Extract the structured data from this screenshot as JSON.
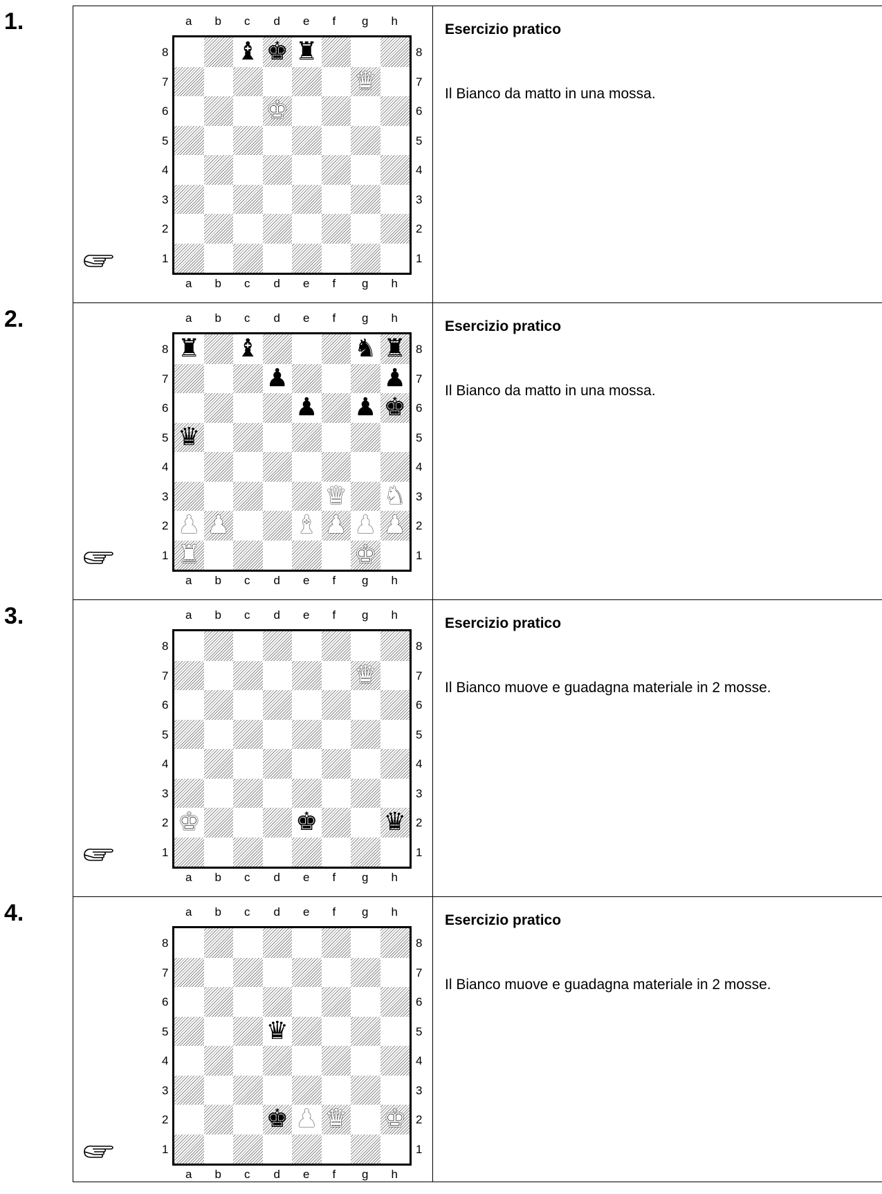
{
  "files": [
    "a",
    "b",
    "c",
    "d",
    "e",
    "f",
    "g",
    "h"
  ],
  "ranks": [
    "8",
    "7",
    "6",
    "5",
    "4",
    "3",
    "2",
    "1"
  ],
  "exercises": [
    {
      "number": "1.",
      "title": "Esercizio pratico",
      "description": "Il Bianco da matto in una mossa.",
      "pieces": [
        {
          "sq": "c8",
          "c": "b",
          "p": "bishop"
        },
        {
          "sq": "d8",
          "c": "b",
          "p": "king"
        },
        {
          "sq": "e8",
          "c": "b",
          "p": "rook"
        },
        {
          "sq": "g7",
          "c": "w",
          "p": "queen"
        },
        {
          "sq": "d6",
          "c": "w",
          "p": "king"
        }
      ]
    },
    {
      "number": "2.",
      "title": "Esercizio pratico",
      "description": "Il Bianco da matto in una mossa.",
      "pieces": [
        {
          "sq": "a8",
          "c": "b",
          "p": "rook"
        },
        {
          "sq": "c8",
          "c": "b",
          "p": "bishop"
        },
        {
          "sq": "g8",
          "c": "b",
          "p": "knight"
        },
        {
          "sq": "h8",
          "c": "b",
          "p": "rook"
        },
        {
          "sq": "d7",
          "c": "b",
          "p": "pawn"
        },
        {
          "sq": "h7",
          "c": "b",
          "p": "pawn"
        },
        {
          "sq": "e6",
          "c": "b",
          "p": "pawn"
        },
        {
          "sq": "g6",
          "c": "b",
          "p": "pawn"
        },
        {
          "sq": "h6",
          "c": "b",
          "p": "king"
        },
        {
          "sq": "a5",
          "c": "b",
          "p": "queen"
        },
        {
          "sq": "f3",
          "c": "w",
          "p": "queen"
        },
        {
          "sq": "h3",
          "c": "w",
          "p": "knight"
        },
        {
          "sq": "a2",
          "c": "w",
          "p": "pawn"
        },
        {
          "sq": "b2",
          "c": "w",
          "p": "pawn"
        },
        {
          "sq": "e2",
          "c": "w",
          "p": "bishop"
        },
        {
          "sq": "f2",
          "c": "w",
          "p": "pawn"
        },
        {
          "sq": "g2",
          "c": "w",
          "p": "pawn"
        },
        {
          "sq": "h2",
          "c": "w",
          "p": "pawn"
        },
        {
          "sq": "a1",
          "c": "w",
          "p": "rook"
        },
        {
          "sq": "g1",
          "c": "w",
          "p": "king"
        }
      ]
    },
    {
      "number": "3.",
      "title": "Esercizio pratico",
      "description": "Il Bianco muove e guadagna materiale in 2 mosse.",
      "pieces": [
        {
          "sq": "g7",
          "c": "w",
          "p": "queen"
        },
        {
          "sq": "a2",
          "c": "w",
          "p": "king"
        },
        {
          "sq": "e2",
          "c": "b",
          "p": "king"
        },
        {
          "sq": "h2",
          "c": "b",
          "p": "queen"
        }
      ]
    },
    {
      "number": "4.",
      "title": "Esercizio pratico",
      "description": "Il Bianco muove e guadagna materiale in 2 mosse.",
      "pieces": [
        {
          "sq": "d5",
          "c": "b",
          "p": "queen"
        },
        {
          "sq": "d2",
          "c": "b",
          "p": "king"
        },
        {
          "sq": "e2",
          "c": "w",
          "p": "pawn"
        },
        {
          "sq": "f2",
          "c": "w",
          "p": "queen"
        },
        {
          "sq": "h2",
          "c": "w",
          "p": "king"
        }
      ]
    }
  ],
  "icons": {
    "turn_indicator": "pointing-hand-icon"
  }
}
